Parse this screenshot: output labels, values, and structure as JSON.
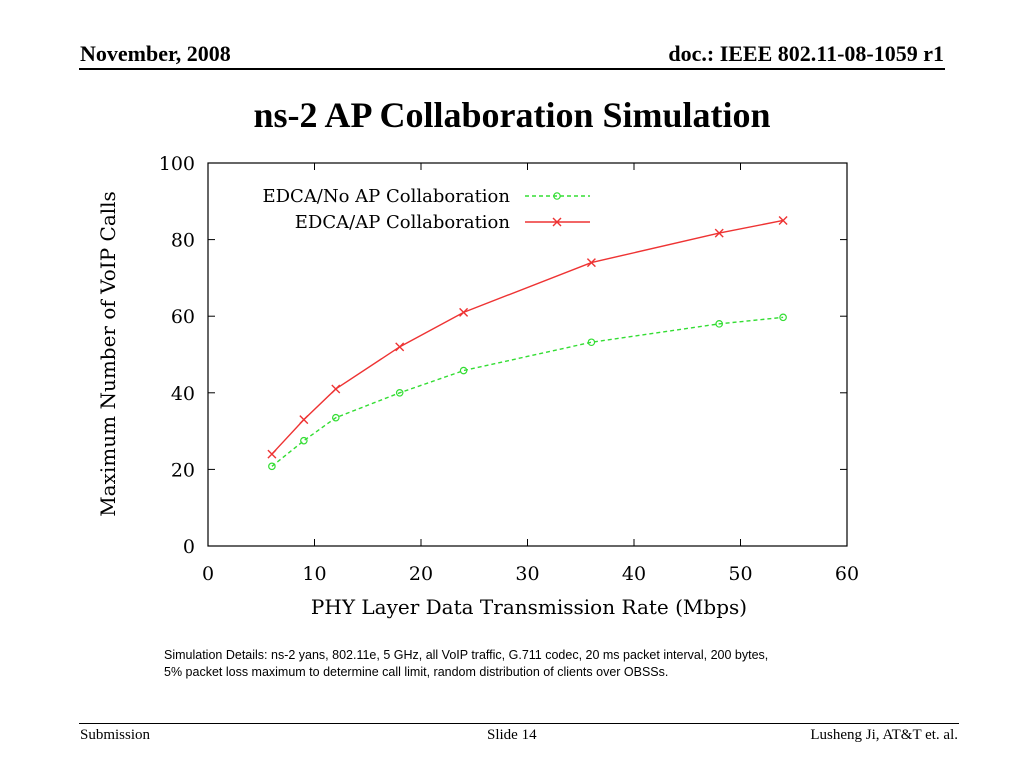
{
  "header": {
    "date": "November, 2008",
    "doc_id": "doc.: IEEE 802.11-08-1059 r1"
  },
  "slide_title": "ns-2 AP Collaboration Simulation",
  "chart_data": {
    "type": "line",
    "title": "",
    "xlabel": "PHY Layer Data Transmission Rate (Mbps)",
    "ylabel": "Maximum Number of VoIP Calls",
    "xlim": [
      0,
      60
    ],
    "ylim": [
      0,
      100
    ],
    "xticks": [
      0,
      10,
      20,
      30,
      40,
      50,
      60
    ],
    "yticks": [
      0,
      20,
      40,
      60,
      80,
      100
    ],
    "grid": false,
    "legend_position": "top",
    "x": [
      6,
      9,
      12,
      18,
      24,
      36,
      48,
      54
    ],
    "series": [
      {
        "name": "EDCA/No AP Collaboration",
        "color": "#33dd33",
        "line_style": "dashed",
        "marker": "circle",
        "values": [
          20.8,
          27.5,
          33.5,
          40,
          45.8,
          53.2,
          58,
          59.7
        ]
      },
      {
        "name": "EDCA/AP Collaboration",
        "color": "#ee3333",
        "line_style": "solid",
        "marker": "cross",
        "values": [
          24,
          33,
          41,
          52,
          61,
          74,
          81.7,
          85
        ]
      }
    ]
  },
  "caption": {
    "line1": "Simulation Details:  ns-2 yans, 802.11e, 5 GHz,  all VoIP traffic, G.711 codec, 20 ms packet interval, 200 bytes,",
    "line2": "5% packet loss maximum to determine call limit, random distribution of clients over OBSSs."
  },
  "footer": {
    "left": "Submission",
    "center": "Slide 14",
    "right": "Lusheng Ji, AT&T et. al."
  }
}
